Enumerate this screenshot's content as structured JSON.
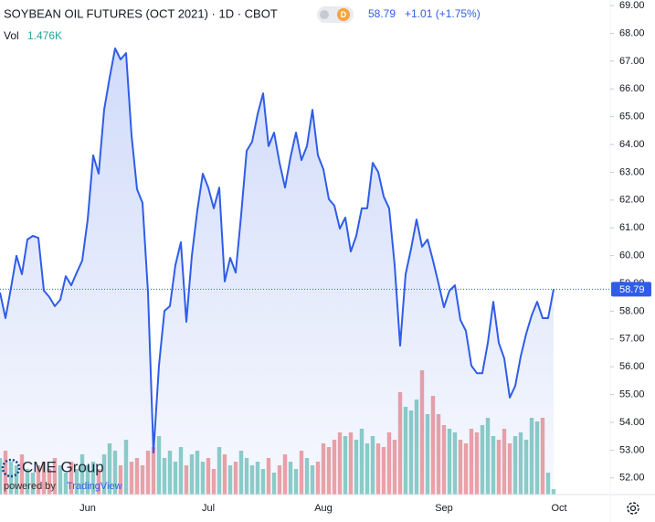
{
  "chart_data": {
    "type": "area",
    "title": "SOYBEAN OIL FUTURES (OCT 2021) · 1D · CBOT",
    "interval_badge": "D",
    "price_label": "58.79",
    "change_label": "+1.01 (+1.75%)",
    "volume_title": "Vol",
    "volume_label": "1.476K",
    "brand": "CME Group",
    "powered_by": "powered by",
    "powered_brand": "TradingView",
    "color": "#2f5de8",
    "up_color": "#8fd0c6",
    "down_color": "#f2a4a4",
    "categories": [
      null,
      null,
      null,
      null,
      null,
      null,
      null,
      null,
      null,
      null,
      null,
      null,
      null,
      null,
      null,
      null,
      "Jun",
      null,
      null,
      null,
      null,
      null,
      null,
      null,
      null,
      null,
      null,
      null,
      null,
      null,
      null,
      null,
      null,
      null,
      null,
      null,
      null,
      null,
      "Jul",
      null,
      null,
      null,
      null,
      null,
      null,
      null,
      null,
      null,
      null,
      null,
      null,
      null,
      null,
      null,
      null,
      null,
      null,
      null,
      null,
      "Aug",
      null,
      null,
      null,
      null,
      null,
      null,
      null,
      null,
      null,
      null,
      null,
      null,
      null,
      null,
      null,
      null,
      null,
      null,
      null,
      null,
      null,
      "Sep",
      null,
      null,
      null,
      null,
      null,
      null,
      null,
      null,
      null,
      null,
      null,
      null,
      null,
      null,
      null,
      null,
      null,
      null,
      null,
      null,
      "Oct"
    ],
    "values": [
      58.67,
      57.75,
      58.83,
      59.99,
      59.33,
      60.58,
      60.71,
      60.64,
      58.74,
      58.51,
      58.18,
      58.41,
      59.26,
      58.93,
      59.39,
      59.82,
      61.3,
      63.61,
      62.95,
      65.25,
      66.4,
      67.46,
      67.06,
      67.29,
      64.33,
      62.39,
      61.9,
      58.67,
      52.91,
      56.04,
      58.01,
      58.18,
      59.66,
      60.48,
      57.62,
      59.99,
      61.63,
      62.95,
      62.45,
      61.7,
      62.45,
      59.07,
      59.92,
      59.39,
      61.47,
      63.77,
      64.1,
      65.09,
      65.84,
      63.94,
      64.43,
      63.34,
      62.45,
      63.54,
      64.43,
      63.44,
      63.94,
      65.25,
      63.61,
      63.11,
      62.03,
      61.8,
      60.97,
      61.37,
      60.15,
      60.71,
      61.7,
      61.7,
      63.34,
      63.01,
      62.13,
      61.7,
      59.66,
      56.76,
      59.33,
      60.25,
      61.3,
      60.32,
      60.58,
      59.82,
      59.0,
      58.14,
      58.74,
      58.93,
      57.68,
      57.29,
      56.04,
      55.77,
      55.77,
      56.86,
      58.34,
      56.86,
      56.3,
      54.89,
      55.31,
      56.37,
      57.19,
      57.85,
      58.34,
      57.75,
      57.75,
      58.79,
      null
    ],
    "volume": [
      10,
      12,
      9,
      8,
      11,
      7,
      6,
      8,
      9,
      7,
      10,
      8,
      6,
      9,
      7,
      11,
      8,
      9,
      7,
      11,
      14,
      12,
      8,
      15,
      9,
      10,
      8,
      12,
      13,
      16,
      10,
      12,
      9,
      13,
      8,
      11,
      12,
      9,
      10,
      7,
      13,
      11,
      8,
      9,
      12,
      10,
      8,
      9,
      7,
      10,
      6,
      8,
      11,
      9,
      7,
      12,
      10,
      8,
      9,
      14,
      13,
      15,
      17,
      16,
      17,
      15,
      18,
      14,
      16,
      14,
      13,
      17,
      15,
      28,
      24,
      23,
      26,
      34,
      22,
      27,
      22,
      19,
      18,
      17,
      15,
      14,
      18,
      17,
      19,
      21,
      16,
      15,
      18,
      14,
      16,
      17,
      15,
      21,
      20,
      21,
      6,
      1.476,
      null
    ],
    "ylim": [
      51.4,
      69.2
    ],
    "yticks": [
      {
        "value": 52,
        "label": "52.00"
      },
      {
        "value": 53,
        "label": "53.00"
      },
      {
        "value": 54,
        "label": "54.00"
      },
      {
        "value": 55,
        "label": "55.00"
      },
      {
        "value": 56,
        "label": "56.00"
      },
      {
        "value": 57,
        "label": "57.00"
      },
      {
        "value": 58,
        "label": "58.00"
      },
      {
        "value": 59,
        "label": "59.00"
      },
      {
        "value": 60,
        "label": "60.00"
      },
      {
        "value": 61,
        "label": "61.00"
      },
      {
        "value": 62,
        "label": "62.00"
      },
      {
        "value": 63,
        "label": "63.00"
      },
      {
        "value": 64,
        "label": "64.00"
      },
      {
        "value": 65,
        "label": "65.00"
      },
      {
        "value": 66,
        "label": "66.00"
      },
      {
        "value": 67,
        "label": "67.00"
      },
      {
        "value": 68,
        "label": "68.00"
      },
      {
        "value": 69,
        "label": "69.00"
      }
    ]
  }
}
